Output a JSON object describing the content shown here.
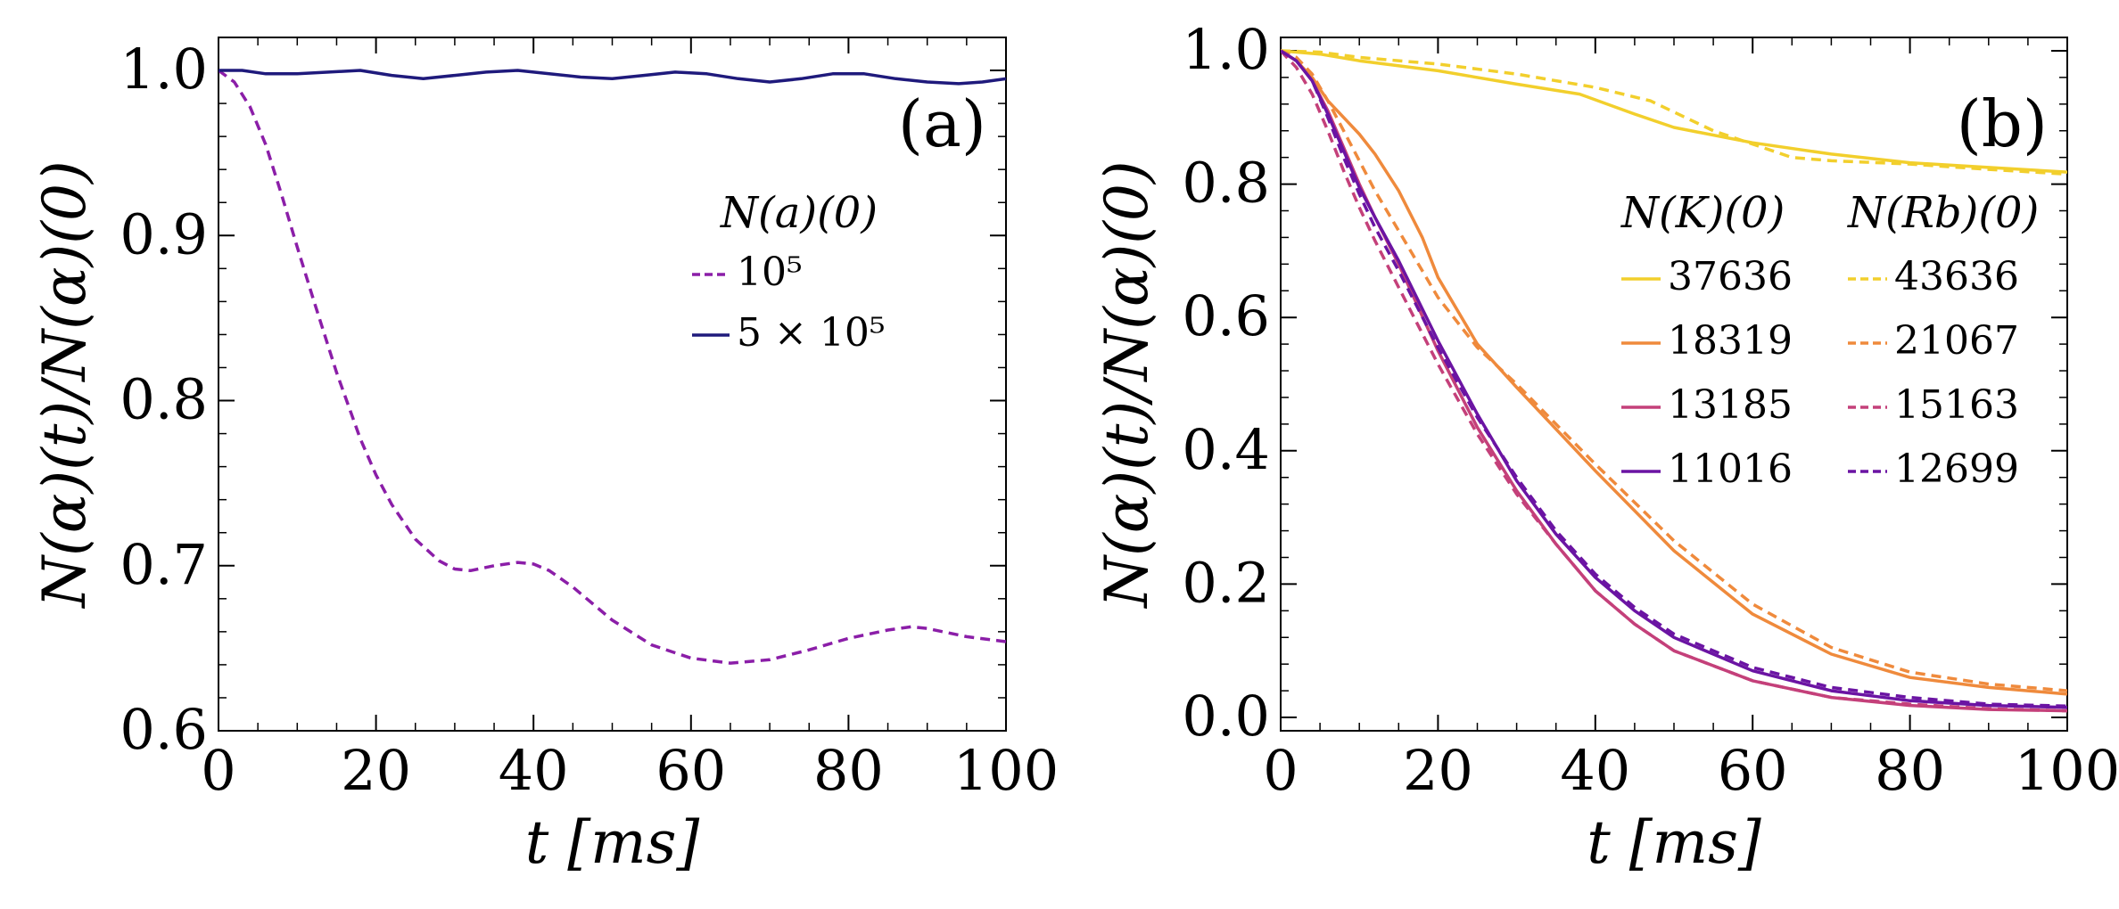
{
  "figure": {
    "panels": [
      {
        "label": "(a)",
        "xlabel": "t [ms]",
        "ylabel": "N(α)(t)/N(α)(0)"
      },
      {
        "label": "(b)",
        "xlabel": "t [ms]",
        "ylabel": "N(α)(t)/N(α)(0)"
      }
    ]
  },
  "chart_data": [
    {
      "type": "line",
      "panel_label": "(a)",
      "title": "",
      "xlabel": "t [ms]",
      "ylabel": "N(α)(t)/N(α)(0)",
      "xlim": [
        0,
        100
      ],
      "ylim": [
        0.6,
        1.02
      ],
      "xticks": [
        0,
        20,
        40,
        60,
        80,
        100
      ],
      "xtick_labels": [
        "0",
        "20",
        "40",
        "60",
        "80",
        "100"
      ],
      "yticks": [
        0.6,
        0.7,
        0.8,
        0.9,
        1.0
      ],
      "ytick_labels": [
        "0.6",
        "0.7",
        "0.8",
        "0.9",
        "1.0"
      ],
      "grid": false,
      "legend_title": "N(a)(0)",
      "legend_position": "center-right",
      "series": [
        {
          "name": "10⁵",
          "color": "#8b1ea8",
          "style": "dashed",
          "x": [
            0,
            2,
            4,
            6,
            8,
            10,
            12,
            15,
            18,
            20,
            22,
            25,
            28,
            30,
            32,
            35,
            38,
            40,
            42,
            45,
            50,
            55,
            60,
            65,
            70,
            75,
            80,
            85,
            88,
            90,
            95,
            100
          ],
          "y": [
            1.0,
            0.993,
            0.978,
            0.955,
            0.925,
            0.893,
            0.862,
            0.817,
            0.777,
            0.755,
            0.737,
            0.716,
            0.703,
            0.698,
            0.697,
            0.7,
            0.702,
            0.701,
            0.697,
            0.687,
            0.667,
            0.652,
            0.644,
            0.641,
            0.643,
            0.649,
            0.656,
            0.661,
            0.663,
            0.662,
            0.657,
            0.654
          ]
        },
        {
          "name": "5 × 10⁵",
          "color": "#1f1a7c",
          "style": "solid",
          "x": [
            0,
            3,
            6,
            10,
            14,
            18,
            22,
            26,
            30,
            34,
            38,
            42,
            46,
            50,
            54,
            58,
            62,
            66,
            70,
            74,
            78,
            82,
            86,
            90,
            94,
            97,
            100
          ],
          "y": [
            1.0,
            1.0,
            0.998,
            0.998,
            0.999,
            1.0,
            0.997,
            0.995,
            0.997,
            0.999,
            1.0,
            0.998,
            0.996,
            0.995,
            0.997,
            0.999,
            0.998,
            0.995,
            0.993,
            0.995,
            0.998,
            0.998,
            0.995,
            0.993,
            0.992,
            0.993,
            0.995
          ]
        }
      ]
    },
    {
      "type": "line",
      "panel_label": "(b)",
      "title": "",
      "xlabel": "t [ms]",
      "ylabel": "N(α)(t)/N(α)(0)",
      "xlim": [
        0,
        100
      ],
      "ylim": [
        -0.02,
        1.02
      ],
      "xticks": [
        0,
        20,
        40,
        60,
        80,
        100
      ],
      "xtick_labels": [
        "0",
        "20",
        "40",
        "60",
        "80",
        "100"
      ],
      "yticks": [
        0.0,
        0.2,
        0.4,
        0.6,
        0.8,
        1.0
      ],
      "ytick_labels": [
        "0.0",
        "0.2",
        "0.4",
        "0.6",
        "0.8",
        "1.0"
      ],
      "grid": false,
      "legend_columns": [
        "N(K)(0)",
        "N(Rb)(0)"
      ],
      "legend_position": "right",
      "series": [
        {
          "name": "37636",
          "group": "K",
          "color": "#f2cf2c",
          "style": "solid",
          "x": [
            0,
            5,
            10,
            20,
            30,
            38,
            45,
            50,
            60,
            70,
            80,
            90,
            100
          ],
          "y": [
            1.0,
            0.995,
            0.985,
            0.97,
            0.95,
            0.935,
            0.905,
            0.885,
            0.862,
            0.845,
            0.832,
            0.825,
            0.818
          ]
        },
        {
          "name": "18319",
          "group": "K",
          "color": "#ef8a3c",
          "style": "solid",
          "x": [
            0,
            2,
            4,
            6,
            8,
            10,
            12,
            15,
            18,
            20,
            25,
            30,
            40,
            50,
            60,
            70,
            80,
            90,
            100
          ],
          "y": [
            1.0,
            0.985,
            0.96,
            0.925,
            0.9,
            0.875,
            0.845,
            0.79,
            0.72,
            0.66,
            0.56,
            0.495,
            0.37,
            0.25,
            0.155,
            0.095,
            0.06,
            0.045,
            0.035
          ]
        },
        {
          "name": "13185",
          "group": "K",
          "color": "#c4407a",
          "style": "solid",
          "x": [
            0,
            2,
            4,
            6,
            8,
            10,
            12,
            15,
            20,
            25,
            30,
            35,
            40,
            45,
            50,
            60,
            70,
            80,
            90,
            100
          ],
          "y": [
            1.0,
            0.985,
            0.955,
            0.91,
            0.855,
            0.8,
            0.75,
            0.68,
            0.55,
            0.435,
            0.34,
            0.26,
            0.19,
            0.14,
            0.1,
            0.055,
            0.03,
            0.018,
            0.012,
            0.01
          ]
        },
        {
          "name": "11016",
          "group": "K",
          "color": "#6b14a3",
          "style": "solid",
          "x": [
            0,
            2,
            4,
            6,
            8,
            10,
            12,
            15,
            20,
            25,
            30,
            35,
            40,
            45,
            50,
            60,
            70,
            80,
            90,
            100
          ],
          "y": [
            1.0,
            0.985,
            0.955,
            0.905,
            0.85,
            0.795,
            0.75,
            0.685,
            0.565,
            0.455,
            0.355,
            0.275,
            0.21,
            0.16,
            0.12,
            0.07,
            0.04,
            0.025,
            0.018,
            0.015
          ]
        },
        {
          "name": "43636",
          "group": "Rb",
          "color": "#f2cf2c",
          "style": "dashed",
          "x": [
            0,
            5,
            10,
            20,
            30,
            40,
            47,
            55,
            60,
            65,
            70,
            80,
            90,
            100
          ],
          "y": [
            1.0,
            0.998,
            0.99,
            0.98,
            0.965,
            0.945,
            0.925,
            0.88,
            0.86,
            0.84,
            0.835,
            0.83,
            0.822,
            0.815
          ]
        },
        {
          "name": "21067",
          "group": "Rb",
          "color": "#ef8a3c",
          "style": "dashed",
          "x": [
            0,
            2,
            4,
            6,
            8,
            10,
            12,
            15,
            18,
            20,
            25,
            30,
            40,
            50,
            60,
            70,
            80,
            90,
            100
          ],
          "y": [
            1.0,
            0.99,
            0.965,
            0.925,
            0.88,
            0.835,
            0.79,
            0.73,
            0.67,
            0.63,
            0.555,
            0.5,
            0.38,
            0.265,
            0.17,
            0.105,
            0.068,
            0.05,
            0.04
          ]
        },
        {
          "name": "15163",
          "group": "Rb",
          "color": "#c4407a",
          "style": "dashed",
          "x": [
            0,
            2,
            4,
            6,
            8,
            10,
            12,
            15,
            20,
            25,
            30,
            35,
            40,
            45,
            50,
            60,
            70,
            80,
            90,
            100
          ],
          "y": [
            1.0,
            0.975,
            0.935,
            0.88,
            0.82,
            0.765,
            0.715,
            0.645,
            0.53,
            0.425,
            0.335,
            0.26,
            0.19,
            0.14,
            0.1,
            0.055,
            0.03,
            0.02,
            0.013,
            0.01
          ]
        },
        {
          "name": "12699",
          "group": "Rb",
          "color": "#6b14a3",
          "style": "dashed",
          "x": [
            0,
            2,
            4,
            6,
            8,
            10,
            12,
            15,
            20,
            25,
            30,
            35,
            40,
            45,
            50,
            60,
            70,
            80,
            90,
            100
          ],
          "y": [
            1.0,
            0.985,
            0.955,
            0.9,
            0.84,
            0.785,
            0.735,
            0.67,
            0.555,
            0.45,
            0.36,
            0.28,
            0.215,
            0.165,
            0.125,
            0.075,
            0.045,
            0.03,
            0.02,
            0.017
          ]
        }
      ]
    }
  ]
}
